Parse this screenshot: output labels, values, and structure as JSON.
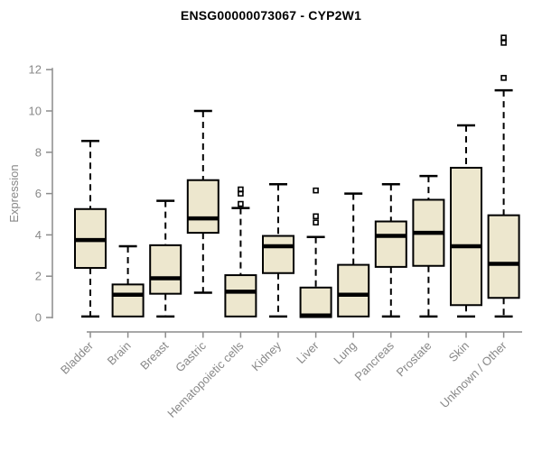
{
  "chart_data": {
    "type": "boxplot",
    "title": "ENSG00000073067 - CYP2W1",
    "ylabel": "Expression",
    "xlabel": "",
    "yticks": [
      0,
      2,
      4,
      6,
      8,
      10,
      12
    ],
    "ylim": [
      0,
      13.8
    ],
    "grid": false,
    "legend": "none",
    "categories": [
      "Bladder",
      "Brain",
      "Breast",
      "Gastric",
      "Hematopoietic cells",
      "Kidney",
      "Liver",
      "Lung",
      "Pancreas",
      "Prostate",
      "Skin",
      "Unknown / Other"
    ],
    "series": [
      {
        "name": "Bladder",
        "whisker_low": 0.05,
        "q1": 2.4,
        "median": 3.75,
        "q3": 5.25,
        "whisker_high": 8.55,
        "outliers": []
      },
      {
        "name": "Brain",
        "whisker_low": 0.05,
        "q1": 0.05,
        "median": 1.1,
        "q3": 1.6,
        "whisker_high": 3.45,
        "outliers": []
      },
      {
        "name": "Breast",
        "whisker_low": 0.05,
        "q1": 1.15,
        "median": 1.9,
        "q3": 3.5,
        "whisker_high": 5.65,
        "outliers": []
      },
      {
        "name": "Gastric",
        "whisker_low": 1.2,
        "q1": 4.1,
        "median": 4.8,
        "q3": 6.65,
        "whisker_high": 10.0,
        "outliers": []
      },
      {
        "name": "Hematopoietic cells",
        "whisker_low": 0.05,
        "q1": 0.05,
        "median": 1.25,
        "q3": 2.05,
        "whisker_high": 5.3,
        "outliers": [
          5.5,
          6.0,
          6.2
        ]
      },
      {
        "name": "Kidney",
        "whisker_low": 0.05,
        "q1": 2.15,
        "median": 3.45,
        "q3": 3.95,
        "whisker_high": 6.45,
        "outliers": []
      },
      {
        "name": "Liver",
        "whisker_low": 0.02,
        "q1": 0.02,
        "median": 0.1,
        "q3": 1.45,
        "whisker_high": 3.9,
        "outliers": [
          4.6,
          4.9,
          6.15
        ]
      },
      {
        "name": "Lung",
        "whisker_low": 0.05,
        "q1": 0.05,
        "median": 1.1,
        "q3": 2.55,
        "whisker_high": 6.0,
        "outliers": []
      },
      {
        "name": "Pancreas",
        "whisker_low": 0.05,
        "q1": 2.45,
        "median": 3.95,
        "q3": 4.65,
        "whisker_high": 6.45,
        "outliers": []
      },
      {
        "name": "Prostate",
        "whisker_low": 0.05,
        "q1": 2.5,
        "median": 4.1,
        "q3": 5.7,
        "whisker_high": 6.85,
        "outliers": []
      },
      {
        "name": "Skin",
        "whisker_low": 0.05,
        "q1": 0.6,
        "median": 3.45,
        "q3": 7.25,
        "whisker_high": 9.3,
        "outliers": []
      },
      {
        "name": "Unknown / Other",
        "whisker_low": 0.05,
        "q1": 0.95,
        "median": 2.6,
        "q3": 4.95,
        "whisker_high": 11.0,
        "outliers": [
          11.6,
          13.3,
          13.55
        ]
      }
    ],
    "colors": {
      "box_fill": "#EDE7CE",
      "box_border": "#000000",
      "median": "#000000",
      "whisker": "#000000",
      "outlier": "#000000",
      "axis": "#8C8C8C",
      "tick_label": "#888888",
      "axis_label": "#888888",
      "title": "#000000",
      "background": "#FFFFFF"
    }
  }
}
